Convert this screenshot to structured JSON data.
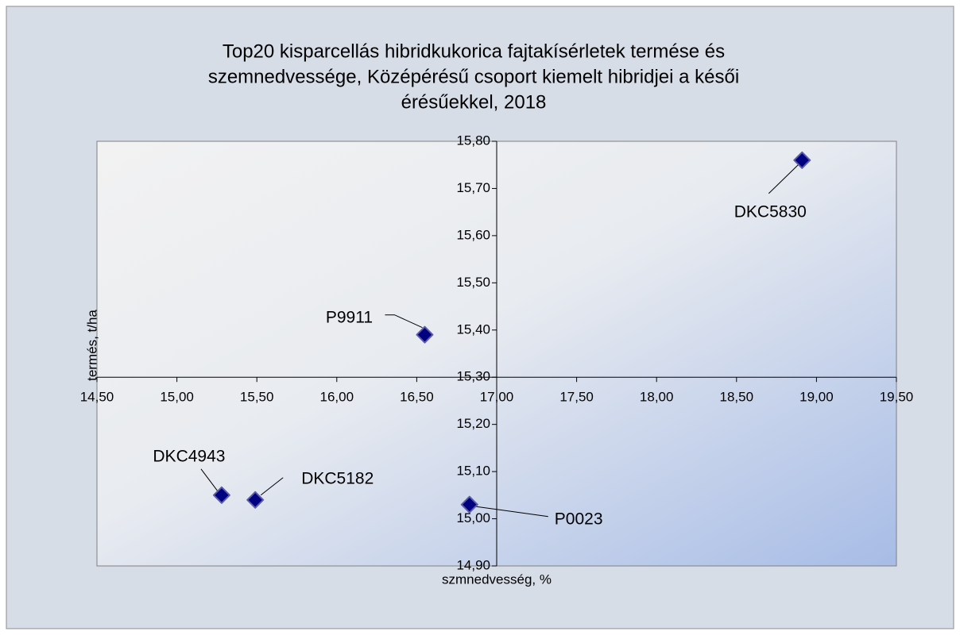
{
  "chart_data": {
    "type": "scatter",
    "title": [
      "Top20 kisparcellás hibridkukorica fajtakísérletek termése és",
      "szemnedvessége, Középérésű csoport kiemelt hibridjei a késői",
      "érésűekkel, 2018"
    ],
    "x_label": "szmnedvesség, %",
    "y_label": "termés, t/ha",
    "color": "#000080",
    "points": [
      {
        "label": "DKC5830",
        "x": 18.91,
        "y": 15.76
      },
      {
        "label": "P9911",
        "x": 16.55,
        "y": 15.39
      },
      {
        "label": "DKC4943",
        "x": 15.28,
        "y": 15.05
      },
      {
        "label": "DKC5182",
        "x": 15.49,
        "y": 15.04
      },
      {
        "label": "P0023",
        "x": 16.83,
        "y": 15.03
      }
    ],
    "xlim": [
      14.5,
      19.5
    ],
    "ylim": [
      14.9,
      15.8
    ],
    "x_cross": 17.0,
    "y_cross": 15.3,
    "xticks": [
      {
        "value": 14.5,
        "label": "14,50"
      },
      {
        "value": 15,
        "label": "15,00"
      },
      {
        "value": 15.5,
        "label": "15,50"
      },
      {
        "value": 16,
        "label": "16,00"
      },
      {
        "value": 16.5,
        "label": "16,50"
      },
      {
        "value": 17,
        "label": "17,00"
      },
      {
        "value": 17.5,
        "label": "17,50"
      },
      {
        "value": 18,
        "label": "18,00"
      },
      {
        "value": 18.5,
        "label": "18,50"
      },
      {
        "value": 19,
        "label": "19,00"
      },
      {
        "value": 19.5,
        "label": "19,50"
      }
    ],
    "yticks": [
      {
        "value": 14.9,
        "label": "14,90"
      },
      {
        "value": 15,
        "label": "15,00"
      },
      {
        "value": 15.1,
        "label": "15,10"
      },
      {
        "value": 15.2,
        "label": "15,20"
      },
      {
        "value": 15.3,
        "label": "15,30"
      },
      {
        "value": 15.4,
        "label": "15,40"
      },
      {
        "value": 15.5,
        "label": "15,50"
      },
      {
        "value": 15.6,
        "label": "15,60"
      },
      {
        "value": 15.7,
        "label": "15,70"
      },
      {
        "value": 15.8,
        "label": "15,80"
      }
    ]
  }
}
